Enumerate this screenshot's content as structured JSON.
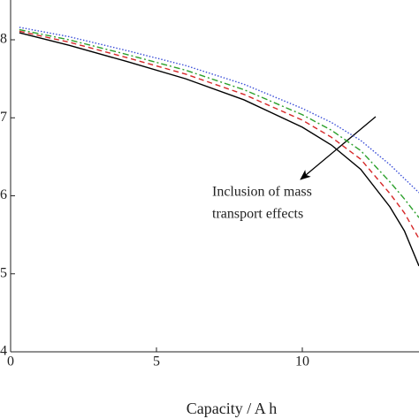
{
  "chart_data": {
    "type": "line",
    "xlabel": "Capacity / A h",
    "annotation": [
      "Inclusion of mass",
      "transport effects"
    ],
    "x": [
      0.3,
      2,
      4,
      6,
      8,
      10,
      11,
      12,
      13,
      13.5,
      14
    ],
    "series": [
      {
        "color": "#000000",
        "dash": "",
        "values": [
          8.09,
          7.93,
          7.72,
          7.5,
          7.23,
          6.88,
          6.65,
          6.34,
          5.86,
          5.55,
          5.1
        ]
      },
      {
        "color": "#d62728",
        "dash": "6 4",
        "values": [
          8.11,
          7.97,
          7.77,
          7.56,
          7.3,
          6.97,
          6.75,
          6.47,
          6.03,
          5.78,
          5.45
        ]
      },
      {
        "color": "#2ca02c",
        "dash": "7 3 2 3",
        "values": [
          8.13,
          8.0,
          7.81,
          7.61,
          7.36,
          7.04,
          6.84,
          6.58,
          6.18,
          5.96,
          5.72
        ]
      },
      {
        "color": "#3b4fd8",
        "dash": "1.5 2",
        "values": [
          8.16,
          8.04,
          7.86,
          7.67,
          7.43,
          7.12,
          6.94,
          6.71,
          6.4,
          6.22,
          6.04
        ]
      }
    ],
    "xlim": [
      0,
      14
    ],
    "xticks": [
      0,
      5,
      10
    ],
    "ylim": [
      4,
      8.51
    ],
    "yticks": [
      4,
      5,
      6,
      7,
      8
    ]
  }
}
